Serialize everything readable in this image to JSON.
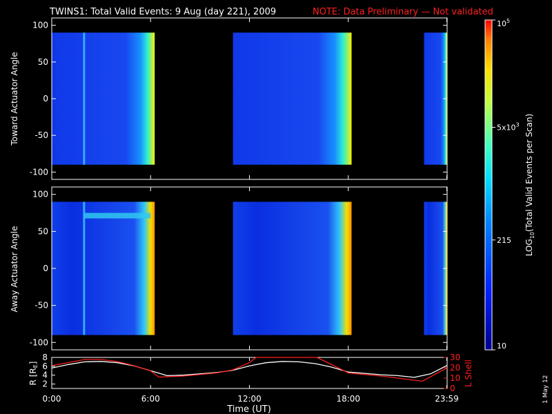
{
  "title": {
    "main": "TWINS1: Total Valid Events:  9 Aug (day 221), 2009",
    "note": "NOTE: Data Preliminary — Not validated"
  },
  "colors": {
    "note": "#ff2020",
    "l_shell": "#ff2020",
    "r_line": "#ffffff",
    "background": "#000000"
  },
  "chart_data": [
    {
      "type": "heatmap",
      "name": "toward",
      "ylabel": "Toward Actuator Angle",
      "ylim": [
        -110,
        110
      ],
      "yticks": [
        100,
        50,
        0,
        -50,
        -100
      ],
      "xlim": [
        0,
        24
      ],
      "data_angle_range": [
        -90,
        90
      ],
      "data_blocks_hours": [
        [
          0,
          6.25
        ],
        [
          11.0,
          18.2
        ],
        [
          22.6,
          24
        ]
      ]
    },
    {
      "type": "heatmap",
      "name": "away",
      "ylabel": "Away Actuator Angle",
      "ylim": [
        -110,
        110
      ],
      "yticks": [
        100,
        50,
        0,
        -50,
        -100
      ],
      "xlim": [
        0,
        24
      ],
      "data_angle_range": [
        -90,
        90
      ],
      "data_blocks_hours": [
        [
          0,
          6.25
        ],
        [
          11.0,
          18.2
        ],
        [
          22.6,
          24
        ]
      ]
    },
    {
      "type": "line",
      "name": "orbit",
      "ylabel_left": "R [R",
      "ylabel_left_sub": "E",
      "ylabel_left_end": "]",
      "ylabel_right": "L Shell",
      "xlabel": "Time (UT)",
      "xticks": [
        "0:00",
        "6:00",
        "12:00",
        "18:00",
        "23:59"
      ],
      "xtick_hours": [
        0,
        6,
        12,
        18,
        23.98
      ],
      "left_yticks": [
        2,
        4,
        6,
        8
      ],
      "left_ylim": [
        1,
        8
      ],
      "right_yticks": [
        0,
        10,
        20,
        30
      ],
      "right_ylim": [
        0,
        30
      ],
      "series": [
        {
          "name": "R",
          "axis": "left",
          "x": [
            0,
            1,
            2,
            3,
            4,
            5,
            6,
            7,
            8,
            9,
            10,
            11,
            12,
            13,
            14,
            15,
            16,
            17,
            18,
            19,
            20,
            21,
            22,
            23,
            24
          ],
          "y": [
            5.6,
            6.4,
            7.0,
            7.1,
            6.8,
            6.1,
            5.0,
            3.9,
            4.0,
            4.3,
            4.6,
            5.1,
            6.1,
            6.8,
            7.1,
            7.0,
            6.6,
            5.8,
            4.7,
            4.4,
            4.1,
            3.9,
            3.5,
            4.3,
            6.2
          ]
        },
        {
          "name": "L Shell",
          "axis": "right",
          "x": [
            0,
            1,
            2,
            3,
            4,
            5,
            6,
            6.5,
            8,
            10,
            11,
            12,
            12.4,
            16.1,
            17,
            18,
            20,
            22,
            22.5,
            24
          ],
          "y": [
            22,
            25,
            28,
            28,
            26,
            22,
            17,
            11,
            12,
            15,
            18,
            25,
            30,
            30,
            23,
            15,
            12,
            8,
            7,
            20
          ]
        }
      ]
    },
    {
      "type": "colorbar",
      "label_pre": "LOG",
      "label_sub": "10",
      "label_post": "(Total Valid  Events per Scan)",
      "ticks": [
        {
          "base": "10",
          "exp": "",
          "value": 10
        },
        {
          "base": "215",
          "exp": "",
          "value": 215
        },
        {
          "base": "5x10",
          "exp": "3",
          "value": 5000
        },
        {
          "base": "10",
          "exp": "5",
          "value": 100000
        }
      ],
      "range": [
        10,
        100000
      ]
    }
  ],
  "footer": {
    "date": "1 May 12"
  }
}
